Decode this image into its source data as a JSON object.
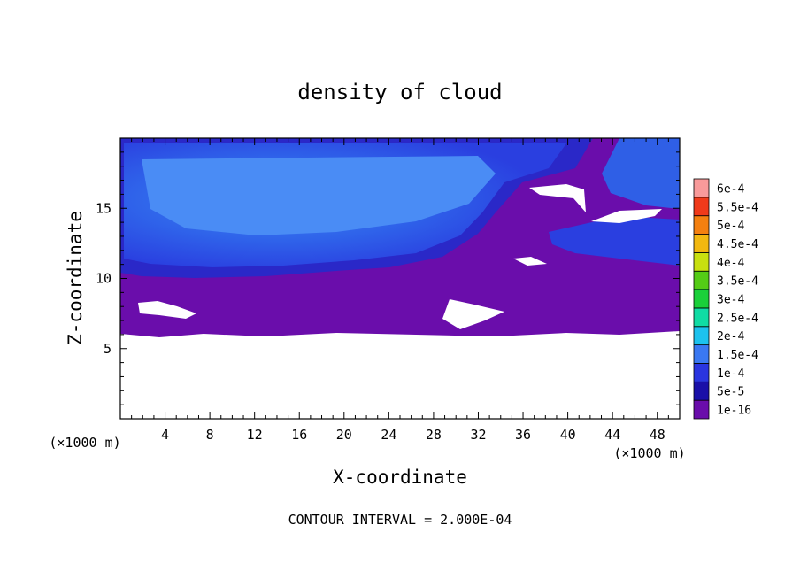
{
  "chart_data": {
    "type": "heatmap",
    "title": "density of cloud",
    "xlabel": "X-coordinate",
    "ylabel": "Z-coordinate",
    "x_unit_left": "(×1000 m)",
    "x_unit_right": "(×1000 m)",
    "footer": "CONTOUR INTERVAL = 2.000E-04",
    "xlim": [
      0,
      50
    ],
    "ylim": [
      0,
      20
    ],
    "x_ticks": [
      4,
      8,
      12,
      16,
      20,
      24,
      28,
      32,
      36,
      40,
      44,
      48
    ],
    "y_ticks": [
      5,
      10,
      15
    ],
    "colorbar": [
      {
        "label": "1e-16",
        "color": "#6a0dab"
      },
      {
        "label": "5e-5",
        "color": "#1a10a8"
      },
      {
        "label": "1e-4",
        "color": "#2a35e0"
      },
      {
        "label": "1.5e-4",
        "color": "#3a78f2"
      },
      {
        "label": "2e-4",
        "color": "#1cc2ee"
      },
      {
        "label": "2.5e-4",
        "color": "#10dca4"
      },
      {
        "label": "3e-4",
        "color": "#1ad03a"
      },
      {
        "label": "3.5e-4",
        "color": "#54cc16"
      },
      {
        "label": "4e-4",
        "color": "#c8e010"
      },
      {
        "label": "4.5e-4",
        "color": "#f2b810"
      },
      {
        "label": "5e-4",
        "color": "#f48010"
      },
      {
        "label": "5.5e-4",
        "color": "#f03a1a"
      },
      {
        "label": "6e-4",
        "color": "#f89a9a"
      }
    ],
    "regions": {
      "clear_below_z": 6.2,
      "purple_band_z": [
        6.2,
        10.5
      ],
      "blue_layer_z": [
        10.5,
        20
      ]
    }
  }
}
